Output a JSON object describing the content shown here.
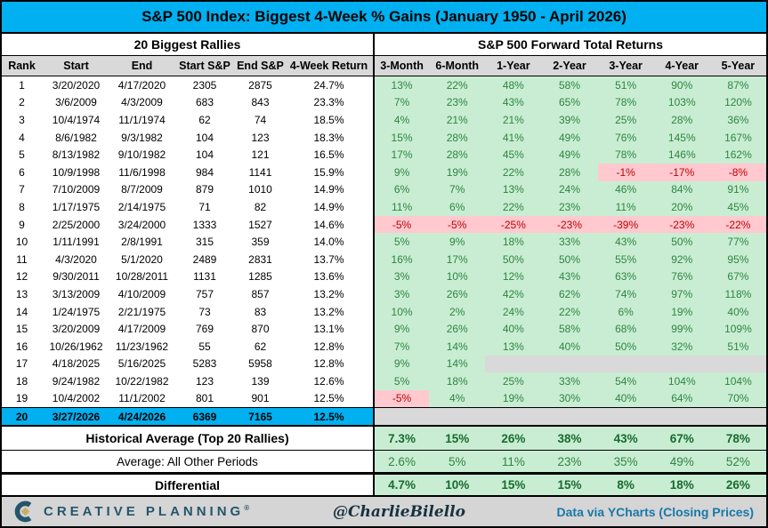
{
  "chart_data": {
    "type": "table",
    "title": "S&P 500 Index: Biggest 4-Week % Gains (January 1950 - April 2026)",
    "section_headers": {
      "left": "20 Biggest Rallies",
      "right": "S&P 500 Forward Total Returns"
    },
    "columns_left": [
      "Rank",
      "Start",
      "End",
      "Start S&P",
      "End S&P",
      "4-Week Return"
    ],
    "columns_right": [
      "3-Month",
      "6-Month",
      "1-Year",
      "2-Year",
      "3-Year",
      "4-Year",
      "5-Year"
    ],
    "rows": [
      {
        "rank": "1",
        "start": "3/20/2020",
        "end": "4/17/2020",
        "start_sp": "2305",
        "end_sp": "2875",
        "return": "24.7%",
        "highlight": false,
        "fwd": [
          "13%",
          "22%",
          "48%",
          "58%",
          "51%",
          "90%",
          "87%"
        ],
        "fwd_state": [
          "g",
          "g",
          "g",
          "g",
          "g",
          "g",
          "g"
        ]
      },
      {
        "rank": "2",
        "start": "3/6/2009",
        "end": "4/3/2009",
        "start_sp": "683",
        "end_sp": "843",
        "return": "23.3%",
        "highlight": false,
        "fwd": [
          "7%",
          "23%",
          "43%",
          "65%",
          "78%",
          "103%",
          "120%"
        ],
        "fwd_state": [
          "g",
          "g",
          "g",
          "g",
          "g",
          "g",
          "g"
        ]
      },
      {
        "rank": "3",
        "start": "10/4/1974",
        "end": "11/1/1974",
        "start_sp": "62",
        "end_sp": "74",
        "return": "18.5%",
        "highlight": false,
        "fwd": [
          "4%",
          "21%",
          "21%",
          "39%",
          "25%",
          "28%",
          "36%"
        ],
        "fwd_state": [
          "g",
          "g",
          "g",
          "g",
          "g",
          "g",
          "g"
        ]
      },
      {
        "rank": "4",
        "start": "8/6/1982",
        "end": "9/3/1982",
        "start_sp": "104",
        "end_sp": "123",
        "return": "18.3%",
        "highlight": false,
        "fwd": [
          "15%",
          "28%",
          "41%",
          "49%",
          "76%",
          "145%",
          "167%"
        ],
        "fwd_state": [
          "g",
          "g",
          "g",
          "g",
          "g",
          "g",
          "g"
        ]
      },
      {
        "rank": "5",
        "start": "8/13/1982",
        "end": "9/10/1982",
        "start_sp": "104",
        "end_sp": "121",
        "return": "16.5%",
        "highlight": false,
        "fwd": [
          "17%",
          "28%",
          "45%",
          "49%",
          "78%",
          "146%",
          "162%"
        ],
        "fwd_state": [
          "g",
          "g",
          "g",
          "g",
          "g",
          "g",
          "g"
        ]
      },
      {
        "rank": "6",
        "start": "10/9/1998",
        "end": "11/6/1998",
        "start_sp": "984",
        "end_sp": "1141",
        "return": "15.9%",
        "highlight": false,
        "fwd": [
          "9%",
          "19%",
          "22%",
          "28%",
          "-1%",
          "-17%",
          "-8%"
        ],
        "fwd_state": [
          "g",
          "g",
          "g",
          "g",
          "r",
          "r",
          "r"
        ]
      },
      {
        "rank": "7",
        "start": "7/10/2009",
        "end": "8/7/2009",
        "start_sp": "879",
        "end_sp": "1010",
        "return": "14.9%",
        "highlight": false,
        "fwd": [
          "6%",
          "7%",
          "13%",
          "24%",
          "46%",
          "84%",
          "91%"
        ],
        "fwd_state": [
          "g",
          "g",
          "g",
          "g",
          "g",
          "g",
          "g"
        ]
      },
      {
        "rank": "8",
        "start": "1/17/1975",
        "end": "2/14/1975",
        "start_sp": "71",
        "end_sp": "82",
        "return": "14.9%",
        "highlight": false,
        "fwd": [
          "11%",
          "6%",
          "22%",
          "23%",
          "11%",
          "20%",
          "45%"
        ],
        "fwd_state": [
          "g",
          "g",
          "g",
          "g",
          "g",
          "g",
          "g"
        ]
      },
      {
        "rank": "9",
        "start": "2/25/2000",
        "end": "3/24/2000",
        "start_sp": "1333",
        "end_sp": "1527",
        "return": "14.6%",
        "highlight": false,
        "fwd": [
          "-5%",
          "-5%",
          "-25%",
          "-23%",
          "-39%",
          "-23%",
          "-22%"
        ],
        "fwd_state": [
          "r",
          "r",
          "r",
          "r",
          "r",
          "r",
          "r"
        ]
      },
      {
        "rank": "10",
        "start": "1/11/1991",
        "end": "2/8/1991",
        "start_sp": "315",
        "end_sp": "359",
        "return": "14.0%",
        "highlight": false,
        "fwd": [
          "5%",
          "9%",
          "18%",
          "33%",
          "43%",
          "50%",
          "77%"
        ],
        "fwd_state": [
          "g",
          "g",
          "g",
          "g",
          "g",
          "g",
          "g"
        ]
      },
      {
        "rank": "11",
        "start": "4/3/2020",
        "end": "5/1/2020",
        "start_sp": "2489",
        "end_sp": "2831",
        "return": "13.7%",
        "highlight": false,
        "fwd": [
          "16%",
          "17%",
          "50%",
          "50%",
          "55%",
          "92%",
          "95%"
        ],
        "fwd_state": [
          "g",
          "g",
          "g",
          "g",
          "g",
          "g",
          "g"
        ]
      },
      {
        "rank": "12",
        "start": "9/30/2011",
        "end": "10/28/2011",
        "start_sp": "1131",
        "end_sp": "1285",
        "return": "13.6%",
        "highlight": false,
        "fwd": [
          "3%",
          "10%",
          "12%",
          "43%",
          "63%",
          "76%",
          "67%"
        ],
        "fwd_state": [
          "g",
          "g",
          "g",
          "g",
          "g",
          "g",
          "g"
        ]
      },
      {
        "rank": "13",
        "start": "3/13/2009",
        "end": "4/10/2009",
        "start_sp": "757",
        "end_sp": "857",
        "return": "13.2%",
        "highlight": false,
        "fwd": [
          "3%",
          "26%",
          "42%",
          "62%",
          "74%",
          "97%",
          "118%"
        ],
        "fwd_state": [
          "g",
          "g",
          "g",
          "g",
          "g",
          "g",
          "g"
        ]
      },
      {
        "rank": "14",
        "start": "1/24/1975",
        "end": "2/21/1975",
        "start_sp": "73",
        "end_sp": "83",
        "return": "13.2%",
        "highlight": false,
        "fwd": [
          "10%",
          "2%",
          "24%",
          "22%",
          "6%",
          "19%",
          "40%"
        ],
        "fwd_state": [
          "g",
          "g",
          "g",
          "g",
          "g",
          "g",
          "g"
        ]
      },
      {
        "rank": "15",
        "start": "3/20/2009",
        "end": "4/17/2009",
        "start_sp": "769",
        "end_sp": "870",
        "return": "13.1%",
        "highlight": false,
        "fwd": [
          "9%",
          "26%",
          "40%",
          "58%",
          "68%",
          "99%",
          "109%"
        ],
        "fwd_state": [
          "g",
          "g",
          "g",
          "g",
          "g",
          "g",
          "g"
        ]
      },
      {
        "rank": "16",
        "start": "10/26/1962",
        "end": "11/23/1962",
        "start_sp": "55",
        "end_sp": "62",
        "return": "12.8%",
        "highlight": false,
        "fwd": [
          "7%",
          "14%",
          "13%",
          "40%",
          "50%",
          "32%",
          "51%"
        ],
        "fwd_state": [
          "g",
          "g",
          "g",
          "g",
          "g",
          "g",
          "g"
        ]
      },
      {
        "rank": "17",
        "start": "4/18/2025",
        "end": "5/16/2025",
        "start_sp": "5283",
        "end_sp": "5958",
        "return": "12.8%",
        "highlight": false,
        "fwd": [
          "9%",
          "14%",
          "",
          "",
          "",
          "",
          ""
        ],
        "fwd_state": [
          "g",
          "g",
          "e",
          "e",
          "e",
          "e",
          "e"
        ]
      },
      {
        "rank": "18",
        "start": "9/24/1982",
        "end": "10/22/1982",
        "start_sp": "123",
        "end_sp": "139",
        "return": "12.6%",
        "highlight": false,
        "fwd": [
          "5%",
          "18%",
          "25%",
          "33%",
          "54%",
          "104%",
          "104%"
        ],
        "fwd_state": [
          "g",
          "g",
          "g",
          "g",
          "g",
          "g",
          "g"
        ]
      },
      {
        "rank": "19",
        "start": "10/4/2002",
        "end": "11/1/2002",
        "start_sp": "801",
        "end_sp": "901",
        "return": "12.5%",
        "highlight": false,
        "fwd": [
          "-5%",
          "4%",
          "19%",
          "30%",
          "40%",
          "64%",
          "70%"
        ],
        "fwd_state": [
          "r",
          "g",
          "g",
          "g",
          "g",
          "g",
          "g"
        ]
      },
      {
        "rank": "20",
        "start": "3/27/2026",
        "end": "4/24/2026",
        "start_sp": "6369",
        "end_sp": "7165",
        "return": "12.5%",
        "highlight": true,
        "fwd": [
          "",
          "",
          "",
          "",
          "",
          "",
          ""
        ],
        "fwd_state": [
          "e",
          "e",
          "e",
          "e",
          "e",
          "e",
          "e"
        ]
      }
    ],
    "summary": [
      {
        "label": "Historical Average (Top 20 Rallies)",
        "bold": true,
        "values": [
          "7.3%",
          "15%",
          "26%",
          "38%",
          "43%",
          "67%",
          "78%"
        ]
      },
      {
        "label": "Average: All Other Periods",
        "bold": false,
        "values": [
          "2.6%",
          "5%",
          "11%",
          "23%",
          "35%",
          "49%",
          "52%"
        ]
      },
      {
        "label": "Differential",
        "bold": true,
        "values": [
          "4.7%",
          "10%",
          "15%",
          "15%",
          "8%",
          "18%",
          "26%"
        ]
      }
    ]
  },
  "footer": {
    "brand": "CREATIVE PLANNING",
    "trademark": "®",
    "handle": "@CharlieBilello",
    "source": "Data via YCharts (Closing Prices)"
  },
  "colors": {
    "accent": "#00b0f0",
    "header_gray": "#d9d9d9",
    "positive_bg": "#c9edd3",
    "positive_text": "#2e8540",
    "negative_bg": "#ffc9cf",
    "negative_text": "#c00000",
    "empty_bg": "#d9d9d9",
    "brand_teal": "#24556c",
    "source_blue": "#1878a8",
    "logo_gold": "#c9ad67",
    "footer_bg": "#d5d5d5"
  }
}
